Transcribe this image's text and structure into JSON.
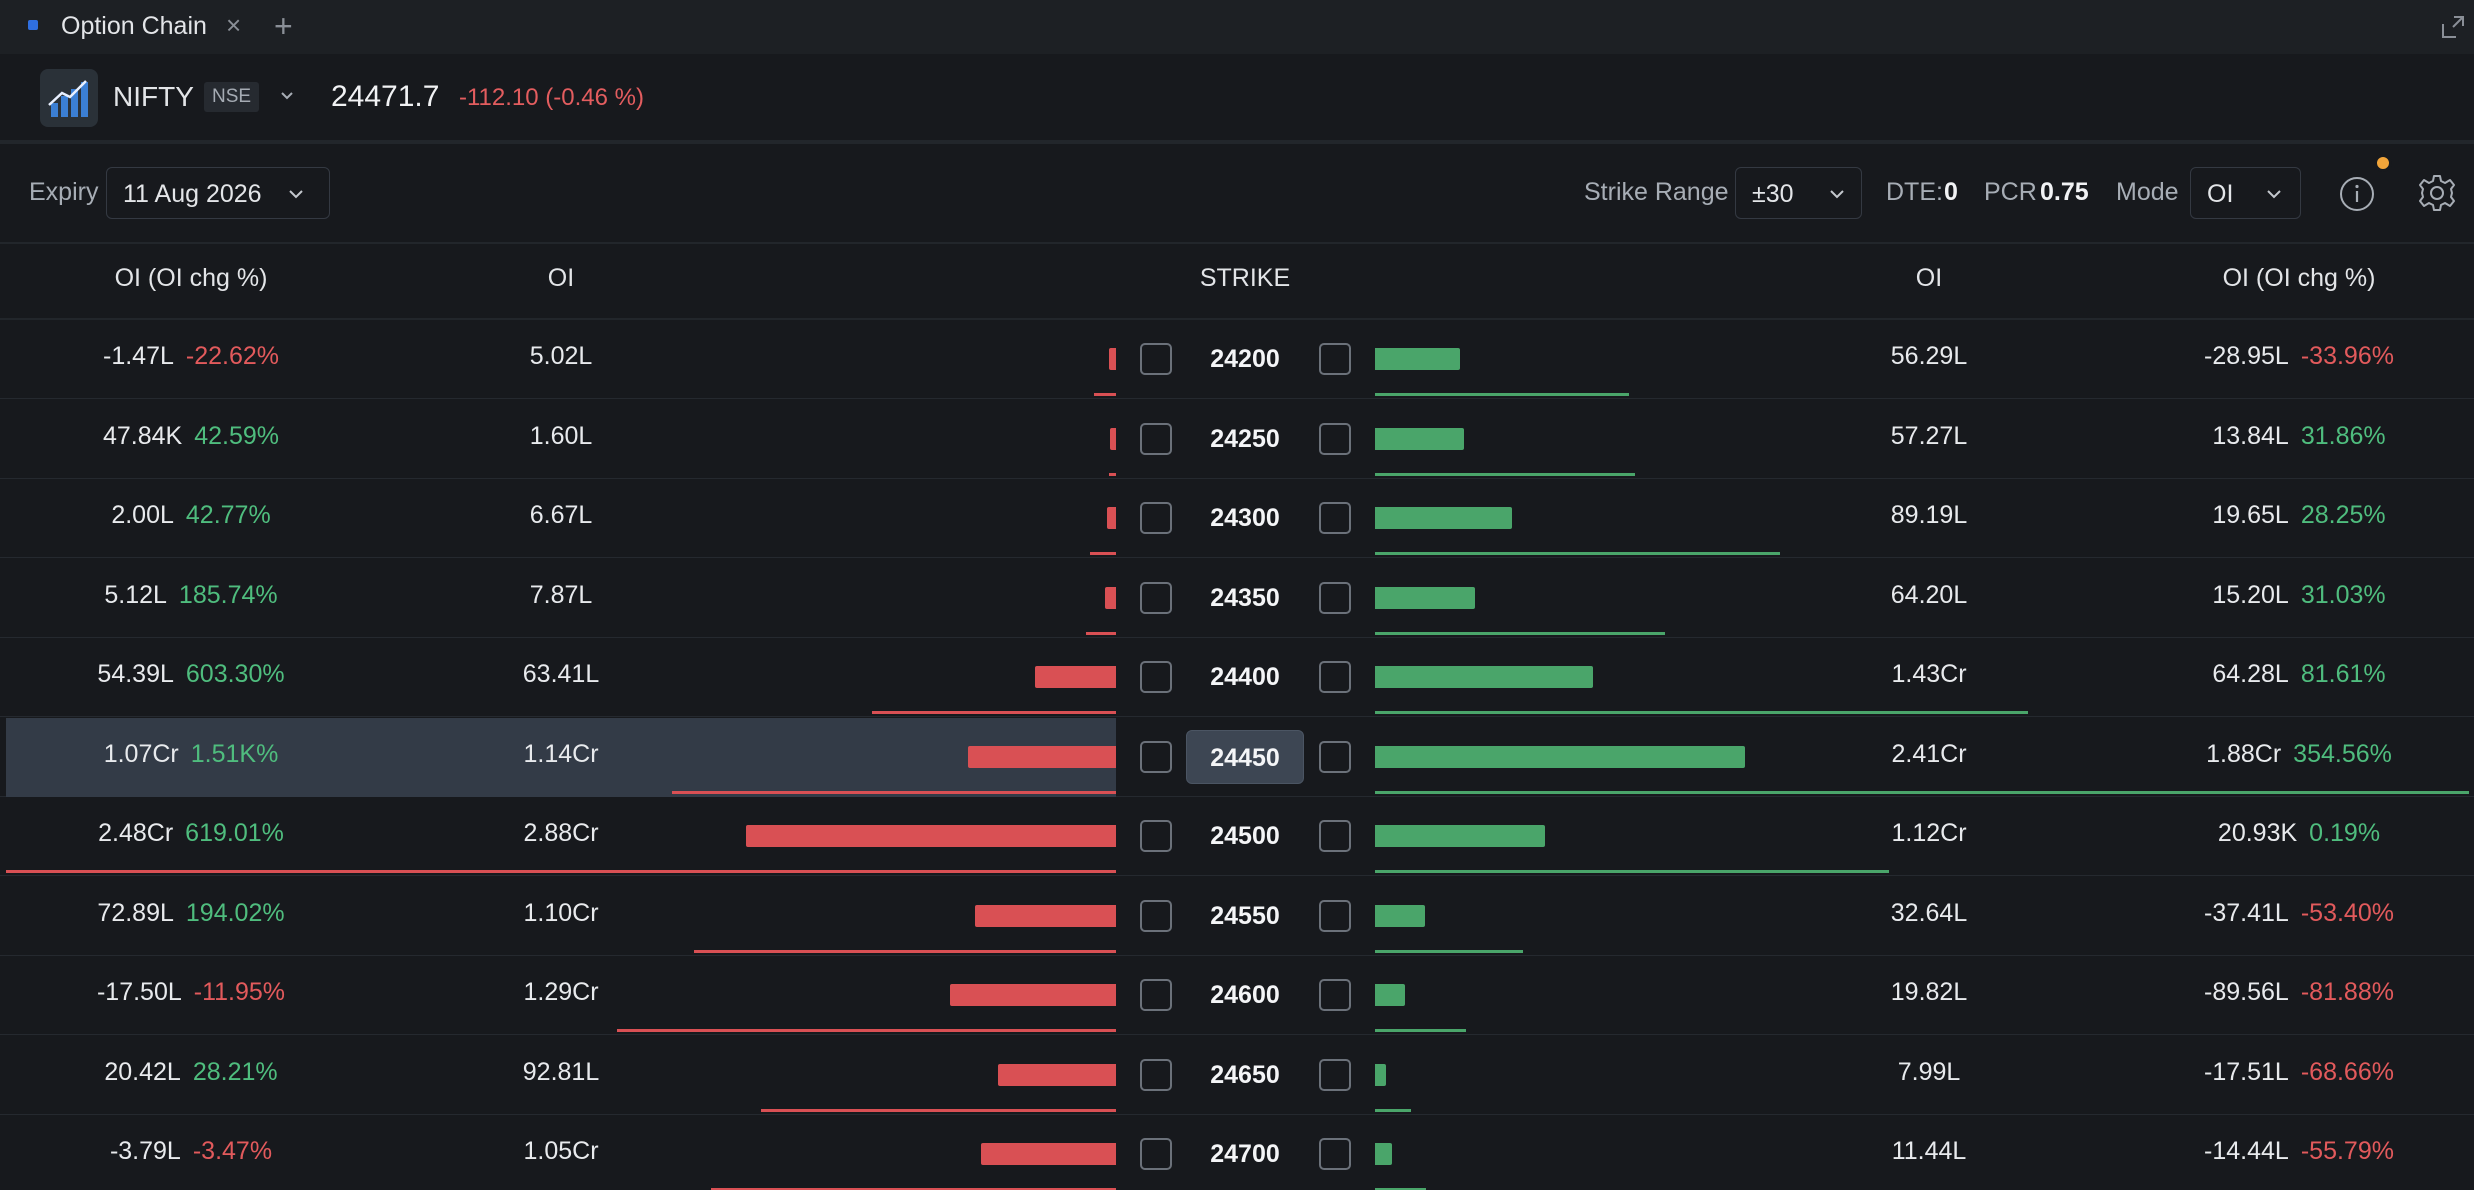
{
  "tab": {
    "title": "Option Chain"
  },
  "instrument": {
    "symbol": "NIFTY",
    "exchange": "NSE",
    "ltp": "24471.7",
    "change": "-112.10 (-0.46 %)"
  },
  "toolbar": {
    "expiry_label": "Expiry",
    "expiry_value": "11 Aug 2026",
    "strike_range_label": "Strike Range",
    "strike_range_value": "±30",
    "dte_label": "DTE:",
    "dte_value": "0",
    "pcr_label": "PCR",
    "pcr_value": "0.75",
    "mode_label": "Mode",
    "mode_value": "OI"
  },
  "headers": {
    "put_oi_chg": "OI (OI chg %)",
    "put_oi": "OI",
    "strike": "STRIKE",
    "call_oi": "OI",
    "call_oi_chg": "OI (OI chg %)"
  },
  "colors": {
    "positive": "#4fbd7e",
    "negative": "#e25a5c",
    "accent": "#2f6fe0",
    "notification": "#f2a53a"
  },
  "rows": [
    {
      "strike": "24200",
      "put_oi_chg": "-1.47L",
      "put_chg_pct": "-22.62%",
      "put_chg_sign": "neg",
      "put_oi": "5.02L",
      "call_oi": "56.29L",
      "call_oi_chg": "-28.95L",
      "call_chg_pct": "-33.96%",
      "call_chg_sign": "neg",
      "put_bar": 0.02,
      "put_line": 0.02,
      "call_bar": 0.23,
      "call_line": 0.42,
      "atm": false
    },
    {
      "strike": "24250",
      "put_oi_chg": "47.84K",
      "put_chg_pct": "42.59%",
      "put_chg_sign": "pos",
      "put_oi": "1.60L",
      "call_oi": "57.27L",
      "call_oi_chg": "13.84L",
      "call_chg_pct": "31.86%",
      "call_chg_sign": "pos",
      "put_bar": 0.01,
      "put_line": 0.006,
      "call_bar": 0.24,
      "call_line": 0.43,
      "atm": false
    },
    {
      "strike": "24300",
      "put_oi_chg": "2.00L",
      "put_chg_pct": "42.77%",
      "put_chg_sign": "pos",
      "put_oi": "6.67L",
      "call_oi": "89.19L",
      "call_oi_chg": "19.65L",
      "call_chg_pct": "28.25%",
      "call_chg_sign": "pos",
      "put_bar": 0.025,
      "put_line": 0.023,
      "call_bar": 0.37,
      "call_line": 0.67,
      "atm": false
    },
    {
      "strike": "24350",
      "put_oi_chg": "5.12L",
      "put_chg_pct": "185.74%",
      "put_chg_sign": "pos",
      "put_oi": "7.87L",
      "call_oi": "64.20L",
      "call_oi_chg": "15.20L",
      "call_chg_pct": "31.03%",
      "call_chg_sign": "pos",
      "put_bar": 0.03,
      "put_line": 0.027,
      "call_bar": 0.27,
      "call_line": 0.48,
      "atm": false
    },
    {
      "strike": "24400",
      "put_oi_chg": "54.39L",
      "put_chg_pct": "603.30%",
      "put_chg_sign": "pos",
      "put_oi": "63.41L",
      "call_oi": "1.43Cr",
      "call_oi_chg": "64.28L",
      "call_chg_pct": "81.61%",
      "call_chg_sign": "pos",
      "put_bar": 0.22,
      "put_line": 0.22,
      "call_bar": 0.59,
      "call_line": 1.08,
      "atm": false
    },
    {
      "strike": "24450",
      "put_oi_chg": "1.07Cr",
      "put_chg_pct": "1.51K%",
      "put_chg_sign": "pos",
      "put_oi": "1.14Cr",
      "call_oi": "2.41Cr",
      "call_oi_chg": "1.88Cr",
      "call_chg_pct": "354.56%",
      "call_chg_sign": "pos",
      "put_bar": 0.4,
      "put_line": 0.4,
      "call_bar": 1.0,
      "call_line": 1.81,
      "atm": true
    },
    {
      "strike": "24500",
      "put_oi_chg": "2.48Cr",
      "put_chg_pct": "619.01%",
      "put_chg_sign": "pos",
      "put_oi": "2.88Cr",
      "call_oi": "1.12Cr",
      "call_oi_chg": "20.93K",
      "call_chg_pct": "0.19%",
      "call_chg_sign": "pos",
      "put_bar": 1.0,
      "put_line": 1.0,
      "call_bar": 0.46,
      "call_line": 0.85,
      "atm": false
    },
    {
      "strike": "24550",
      "put_oi_chg": "72.89L",
      "put_chg_pct": "194.02%",
      "put_chg_sign": "pos",
      "put_oi": "1.10Cr",
      "call_oi": "32.64L",
      "call_oi_chg": "-37.41L",
      "call_chg_pct": "-53.40%",
      "call_chg_sign": "neg",
      "put_bar": 0.38,
      "put_line": 0.38,
      "call_bar": 0.135,
      "call_line": 0.245,
      "atm": false
    },
    {
      "strike": "24600",
      "put_oi_chg": "-17.50L",
      "put_chg_pct": "-11.95%",
      "put_chg_sign": "neg",
      "put_oi": "1.29Cr",
      "call_oi": "19.82L",
      "call_oi_chg": "-89.56L",
      "call_chg_pct": "-81.88%",
      "call_chg_sign": "neg",
      "put_bar": 0.45,
      "put_line": 0.45,
      "call_bar": 0.08,
      "call_line": 0.15,
      "atm": false
    },
    {
      "strike": "24650",
      "put_oi_chg": "20.42L",
      "put_chg_pct": "28.21%",
      "put_chg_sign": "pos",
      "put_oi": "92.81L",
      "call_oi": "7.99L",
      "call_oi_chg": "-17.51L",
      "call_chg_pct": "-68.66%",
      "call_chg_sign": "neg",
      "put_bar": 0.32,
      "put_line": 0.32,
      "call_bar": 0.03,
      "call_line": 0.06,
      "atm": false
    },
    {
      "strike": "24700",
      "put_oi_chg": "-3.79L",
      "put_chg_pct": "-3.47%",
      "put_chg_sign": "neg",
      "put_oi": "1.05Cr",
      "call_oi": "11.44L",
      "call_oi_chg": "-14.44L",
      "call_chg_pct": "-55.79%",
      "call_chg_sign": "neg",
      "put_bar": 0.365,
      "put_line": 0.365,
      "call_bar": 0.045,
      "call_line": 0.085,
      "atm": false
    }
  ]
}
